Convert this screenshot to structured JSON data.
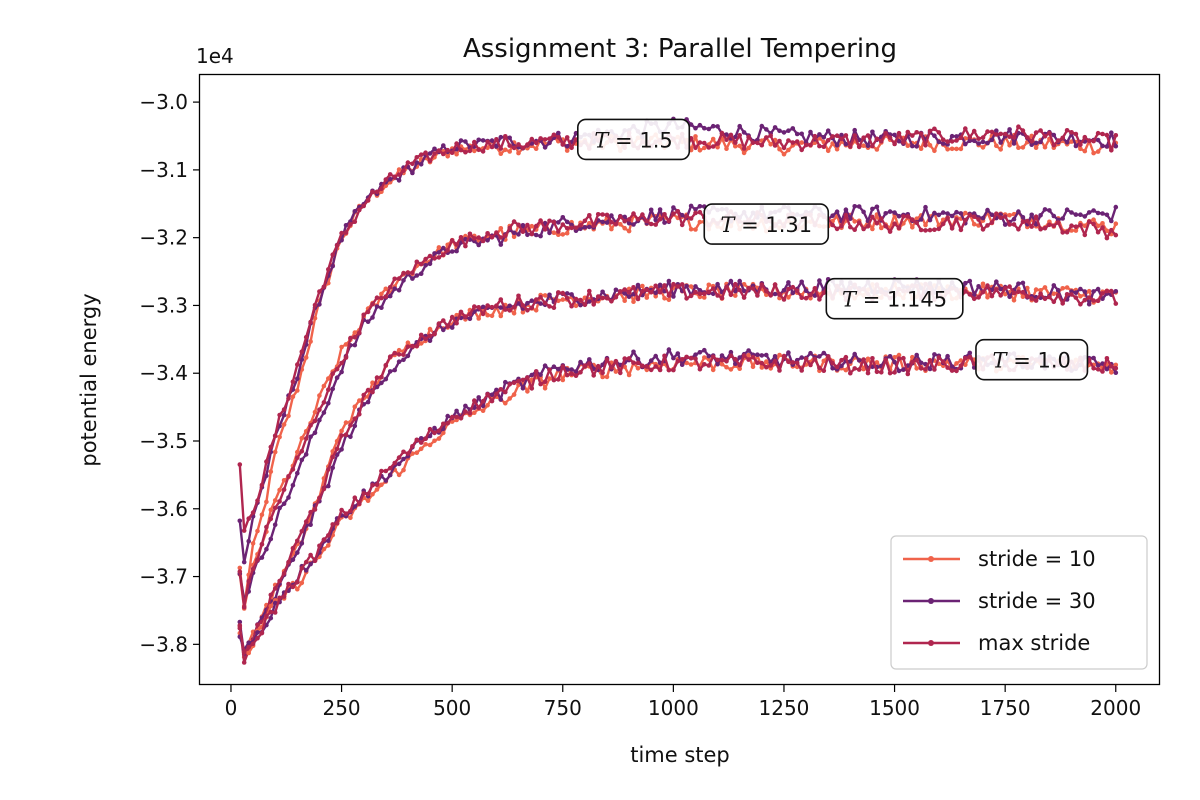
{
  "chart_data": {
    "type": "line",
    "title": "Assignment 3: Parallel Tempering",
    "xlabel": "time step",
    "ylabel": "potential energy",
    "y_offset_label": "1e4",
    "xlim": [
      -70,
      2100
    ],
    "ylim": [
      -3.86,
      -2.96
    ],
    "x_ticks": [
      0,
      250,
      500,
      750,
      1000,
      1250,
      1500,
      1750,
      2000
    ],
    "x_tick_labels": [
      "0",
      "250",
      "500",
      "750",
      "1000",
      "1250",
      "1500",
      "1750",
      "2000"
    ],
    "y_ticks": [
      -3.8,
      -3.7,
      -3.6,
      -3.5,
      -3.4,
      -3.3,
      -3.2,
      -3.1,
      -3.0
    ],
    "y_tick_labels": [
      "−3.8",
      "−3.7",
      "−3.6",
      "−3.5",
      "−3.4",
      "−3.3",
      "−3.2",
      "−3.1",
      "−3.0"
    ],
    "grid": false,
    "legend_position": "bottom-right",
    "legend": [
      {
        "label": "stride = 10",
        "color": "#f0634b"
      },
      {
        "label": "stride = 30",
        "color": "#6b2374"
      },
      {
        "label": "max stride",
        "color": "#b0264f"
      }
    ],
    "annotations": [
      {
        "variable": "T",
        "value": "1.5",
        "x": 910,
        "y": -3.055
      },
      {
        "variable": "T",
        "value": "1.31",
        "x": 1210,
        "y": -3.18
      },
      {
        "variable": "T",
        "value": "1.145",
        "x": 1500,
        "y": -3.29
      },
      {
        "variable": "T",
        "value": "1.0",
        "x": 1810,
        "y": -3.38
      }
    ],
    "temperatures": [
      {
        "T": "1.5",
        "stride_10": [
          [
            20,
            -3.69
          ],
          [
            30,
            -3.74
          ],
          [
            50,
            -3.66
          ],
          [
            75,
            -3.6
          ],
          [
            100,
            -3.52
          ],
          [
            150,
            -3.42
          ],
          [
            200,
            -3.3
          ],
          [
            250,
            -3.2
          ],
          [
            300,
            -3.15
          ],
          [
            350,
            -3.12
          ],
          [
            400,
            -3.1
          ],
          [
            450,
            -3.085
          ],
          [
            500,
            -3.07
          ],
          [
            600,
            -3.065
          ],
          [
            750,
            -3.06
          ],
          [
            1000,
            -3.06
          ],
          [
            1250,
            -3.065
          ],
          [
            1500,
            -3.06
          ],
          [
            1750,
            -3.06
          ],
          [
            2000,
            -3.065
          ]
        ],
        "stride_30": [
          [
            20,
            -3.62
          ],
          [
            30,
            -3.68
          ],
          [
            50,
            -3.61
          ],
          [
            75,
            -3.56
          ],
          [
            100,
            -3.5
          ],
          [
            150,
            -3.4
          ],
          [
            200,
            -3.29
          ],
          [
            250,
            -3.2
          ],
          [
            300,
            -3.15
          ],
          [
            350,
            -3.12
          ],
          [
            400,
            -3.1
          ],
          [
            450,
            -3.08
          ],
          [
            500,
            -3.065
          ],
          [
            600,
            -3.06
          ],
          [
            750,
            -3.055
          ],
          [
            1000,
            -3.035
          ],
          [
            1250,
            -3.05
          ],
          [
            1500,
            -3.055
          ],
          [
            1750,
            -3.05
          ],
          [
            2000,
            -3.055
          ]
        ],
        "max_stride": [
          [
            20,
            -3.535
          ],
          [
            30,
            -3.64
          ],
          [
            50,
            -3.6
          ],
          [
            75,
            -3.55
          ],
          [
            100,
            -3.49
          ],
          [
            150,
            -3.39
          ],
          [
            200,
            -3.28
          ],
          [
            250,
            -3.2
          ],
          [
            300,
            -3.15
          ],
          [
            350,
            -3.12
          ],
          [
            400,
            -3.095
          ],
          [
            450,
            -3.08
          ],
          [
            500,
            -3.068
          ],
          [
            600,
            -3.062
          ],
          [
            750,
            -3.058
          ],
          [
            1000,
            -3.055
          ],
          [
            1250,
            -3.06
          ],
          [
            1500,
            -3.055
          ],
          [
            1750,
            -3.045
          ],
          [
            2000,
            -3.06
          ]
        ]
      },
      {
        "T": "1.31",
        "stride_10": [
          [
            20,
            -3.69
          ],
          [
            30,
            -3.75
          ],
          [
            50,
            -3.69
          ],
          [
            75,
            -3.64
          ],
          [
            100,
            -3.59
          ],
          [
            150,
            -3.52
          ],
          [
            200,
            -3.44
          ],
          [
            250,
            -3.37
          ],
          [
            300,
            -3.32
          ],
          [
            350,
            -3.28
          ],
          [
            400,
            -3.25
          ],
          [
            450,
            -3.23
          ],
          [
            500,
            -3.21
          ],
          [
            600,
            -3.195
          ],
          [
            750,
            -3.185
          ],
          [
            1000,
            -3.175
          ],
          [
            1250,
            -3.18
          ],
          [
            1500,
            -3.175
          ],
          [
            1750,
            -3.17
          ],
          [
            2000,
            -3.185
          ]
        ],
        "stride_30": [
          [
            20,
            -3.69
          ],
          [
            30,
            -3.73
          ],
          [
            50,
            -3.7
          ],
          [
            75,
            -3.66
          ],
          [
            100,
            -3.62
          ],
          [
            150,
            -3.55
          ],
          [
            200,
            -3.47
          ],
          [
            250,
            -3.39
          ],
          [
            300,
            -3.33
          ],
          [
            350,
            -3.29
          ],
          [
            400,
            -3.26
          ],
          [
            450,
            -3.235
          ],
          [
            500,
            -3.215
          ],
          [
            600,
            -3.2
          ],
          [
            750,
            -3.18
          ],
          [
            1000,
            -3.165
          ],
          [
            1250,
            -3.165
          ],
          [
            1500,
            -3.165
          ],
          [
            1750,
            -3.17
          ],
          [
            2000,
            -3.165
          ]
        ],
        "max_stride": [
          [
            20,
            -3.69
          ],
          [
            30,
            -3.74
          ],
          [
            50,
            -3.69
          ],
          [
            75,
            -3.64
          ],
          [
            100,
            -3.6
          ],
          [
            150,
            -3.53
          ],
          [
            200,
            -3.45
          ],
          [
            250,
            -3.38
          ],
          [
            300,
            -3.32
          ],
          [
            350,
            -3.28
          ],
          [
            400,
            -3.25
          ],
          [
            450,
            -3.23
          ],
          [
            500,
            -3.21
          ],
          [
            600,
            -3.19
          ],
          [
            750,
            -3.18
          ],
          [
            1000,
            -3.17
          ],
          [
            1250,
            -3.175
          ],
          [
            1500,
            -3.18
          ],
          [
            1750,
            -3.175
          ],
          [
            2000,
            -3.19
          ]
        ]
      },
      {
        "T": "1.145",
        "stride_10": [
          [
            20,
            -3.78
          ],
          [
            30,
            -3.81
          ],
          [
            50,
            -3.79
          ],
          [
            75,
            -3.75
          ],
          [
            100,
            -3.72
          ],
          [
            150,
            -3.66
          ],
          [
            200,
            -3.58
          ],
          [
            250,
            -3.48
          ],
          [
            300,
            -3.44
          ],
          [
            350,
            -3.39
          ],
          [
            400,
            -3.36
          ],
          [
            450,
            -3.34
          ],
          [
            500,
            -3.32
          ],
          [
            600,
            -3.305
          ],
          [
            750,
            -3.29
          ],
          [
            1000,
            -3.28
          ],
          [
            1250,
            -3.28
          ],
          [
            1500,
            -3.28
          ],
          [
            1750,
            -3.28
          ],
          [
            2000,
            -3.285
          ]
        ],
        "stride_30": [
          [
            20,
            -3.77
          ],
          [
            30,
            -3.815
          ],
          [
            50,
            -3.79
          ],
          [
            75,
            -3.76
          ],
          [
            100,
            -3.73
          ],
          [
            150,
            -3.66
          ],
          [
            200,
            -3.59
          ],
          [
            250,
            -3.51
          ],
          [
            300,
            -3.45
          ],
          [
            350,
            -3.4
          ],
          [
            400,
            -3.37
          ],
          [
            450,
            -3.345
          ],
          [
            500,
            -3.325
          ],
          [
            600,
            -3.305
          ],
          [
            750,
            -3.29
          ],
          [
            1000,
            -3.275
          ],
          [
            1250,
            -3.275
          ],
          [
            1500,
            -3.27
          ],
          [
            1750,
            -3.275
          ],
          [
            2000,
            -3.29
          ]
        ],
        "max_stride": [
          [
            20,
            -3.775
          ],
          [
            30,
            -3.82
          ],
          [
            50,
            -3.79
          ],
          [
            75,
            -3.76
          ],
          [
            100,
            -3.72
          ],
          [
            150,
            -3.65
          ],
          [
            200,
            -3.58
          ],
          [
            250,
            -3.5
          ],
          [
            300,
            -3.44
          ],
          [
            350,
            -3.39
          ],
          [
            400,
            -3.36
          ],
          [
            450,
            -3.34
          ],
          [
            500,
            -3.32
          ],
          [
            600,
            -3.3
          ],
          [
            750,
            -3.29
          ],
          [
            1000,
            -3.28
          ],
          [
            1250,
            -3.28
          ],
          [
            1500,
            -3.28
          ],
          [
            1750,
            -3.28
          ],
          [
            2000,
            -3.29
          ]
        ]
      },
      {
        "T": "1.0",
        "stride_10": [
          [
            20,
            -3.78
          ],
          [
            30,
            -3.815
          ],
          [
            50,
            -3.8
          ],
          [
            75,
            -3.77
          ],
          [
            100,
            -3.74
          ],
          [
            150,
            -3.71
          ],
          [
            200,
            -3.67
          ],
          [
            250,
            -3.62
          ],
          [
            300,
            -3.59
          ],
          [
            350,
            -3.56
          ],
          [
            400,
            -3.53
          ],
          [
            450,
            -3.5
          ],
          [
            500,
            -3.475
          ],
          [
            600,
            -3.44
          ],
          [
            750,
            -3.4
          ],
          [
            1000,
            -3.385
          ],
          [
            1250,
            -3.385
          ],
          [
            1500,
            -3.385
          ],
          [
            1750,
            -3.385
          ],
          [
            2000,
            -3.39
          ]
        ],
        "stride_30": [
          [
            20,
            -3.78
          ],
          [
            30,
            -3.81
          ],
          [
            50,
            -3.795
          ],
          [
            75,
            -3.775
          ],
          [
            100,
            -3.74
          ],
          [
            150,
            -3.7
          ],
          [
            200,
            -3.66
          ],
          [
            250,
            -3.61
          ],
          [
            300,
            -3.58
          ],
          [
            350,
            -3.55
          ],
          [
            400,
            -3.52
          ],
          [
            450,
            -3.49
          ],
          [
            500,
            -3.465
          ],
          [
            600,
            -3.43
          ],
          [
            750,
            -3.39
          ],
          [
            1000,
            -3.375
          ],
          [
            1250,
            -3.38
          ],
          [
            1500,
            -3.385
          ],
          [
            1750,
            -3.38
          ],
          [
            2000,
            -3.39
          ]
        ],
        "max_stride": [
          [
            20,
            -3.78
          ],
          [
            30,
            -3.82
          ],
          [
            50,
            -3.8
          ],
          [
            75,
            -3.77
          ],
          [
            100,
            -3.745
          ],
          [
            150,
            -3.7
          ],
          [
            200,
            -3.66
          ],
          [
            250,
            -3.61
          ],
          [
            300,
            -3.58
          ],
          [
            350,
            -3.545
          ],
          [
            400,
            -3.515
          ],
          [
            450,
            -3.49
          ],
          [
            500,
            -3.465
          ],
          [
            600,
            -3.43
          ],
          [
            750,
            -3.395
          ],
          [
            1000,
            -3.385
          ],
          [
            1250,
            -3.385
          ],
          [
            1500,
            -3.39
          ],
          [
            1750,
            -3.385
          ],
          [
            2000,
            -3.39
          ]
        ]
      }
    ]
  }
}
